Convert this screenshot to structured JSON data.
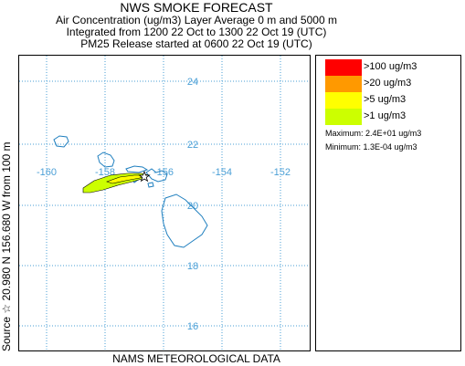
{
  "header": {
    "title": "NWS SMOKE FORECAST",
    "line1": "Air Concentration (ug/m3) Layer Average    0 m and  5000 m",
    "line2": "Integrated from 1200 22 Oct to 1300 22 Oct 19 (UTC)",
    "line3": "PM25 Release started at 0600 22 Oct 19 (UTC)"
  },
  "map": {
    "lon_labels": [
      "-160",
      "-158",
      "-156",
      "-154",
      "-152"
    ],
    "lat_labels": [
      "24",
      "22",
      "20",
      "18",
      "16"
    ],
    "grid_color": "#4a9fd6",
    "coast_color": "#1f7fbf",
    "source_marker": "star"
  },
  "legend": {
    "items": [
      {
        "label": ">100 ug/m3",
        "color": "#ff0000"
      },
      {
        "label": ">20 ug/m3",
        "color": "#ff9900"
      },
      {
        "label": ">5 ug/m3",
        "color": "#ffff00"
      },
      {
        "label": ">1 ug/m3",
        "color": "#ccff00"
      }
    ],
    "maximum": "Maximum: 2.4E+01 ug/m3",
    "minimum": "Minimum: 1.3E-04 ug/m3"
  },
  "side_label": "Source ☆  20.980  N 156.680  W        from  100 m",
  "footer": "NAMS METEOROLOGICAL DATA"
}
